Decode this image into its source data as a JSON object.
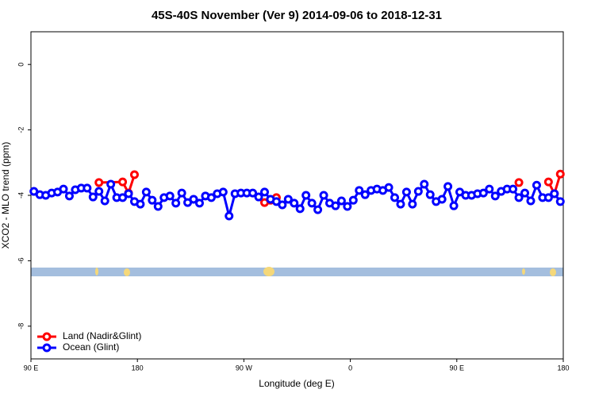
{
  "chart_data": {
    "type": "line",
    "title": "45S-40S November (Ver 9)   2014-09-06 to 2018-12-31",
    "x_label": "Longitude (deg E)",
    "y_label": "XCO2 - MLO trend (ppm)",
    "xlim": [
      90,
      540
    ],
    "xticks": [
      {
        "value": 90,
        "label": "90 E"
      },
      {
        "value": 180,
        "label": "180"
      },
      {
        "value": 270,
        "label": "90 W"
      },
      {
        "value": 360,
        "label": "0"
      },
      {
        "value": 450,
        "label": "90 E"
      },
      {
        "value": 540,
        "label": "180"
      }
    ],
    "ylim": [
      -9,
      1
    ],
    "yticks": [
      0,
      -2,
      -4,
      -6,
      -8
    ],
    "legend": "bottomleft",
    "series": [
      {
        "name": "Land (Nadir&Glint)",
        "color": "#ff0000",
        "x": [
          147.5,
          167.5,
          172.5,
          177.5,
          null,
          287.5,
          292.5,
          297.5,
          null,
          502.5,
          null,
          527.5,
          532.5,
          537.5
        ],
        "values": [
          -3.61,
          -3.59,
          -3.93,
          -3.37,
          null,
          -4.22,
          -4.15,
          -4.07,
          null,
          -3.61,
          null,
          -3.59,
          -3.95,
          -3.35
        ]
      },
      {
        "name": "Ocean (Glint)",
        "color": "#0000ff",
        "x": [
          92.5,
          97.5,
          102.5,
          107.5,
          112.5,
          117.5,
          122.5,
          127.5,
          132.5,
          137.5,
          142.5,
          147.5,
          152.5,
          157.5,
          162.5,
          167.5,
          172.5,
          177.5,
          182.5,
          187.5,
          192.5,
          197.5,
          202.5,
          207.5,
          212.5,
          217.5,
          222.5,
          227.5,
          232.5,
          237.5,
          242.5,
          247.5,
          252.5,
          257.5,
          262.5,
          267.5,
          272.5,
          277.5,
          282.5,
          287.5,
          292.5,
          297.5,
          302.5,
          307.5,
          312.5,
          317.5,
          322.5,
          327.5,
          332.5,
          337.5,
          342.5,
          347.5,
          352.5,
          357.5,
          362.5,
          367.5,
          372.5,
          377.5,
          382.5,
          387.5,
          392.5,
          397.5,
          402.5,
          407.5,
          412.5,
          417.5,
          422.5,
          427.5,
          432.5,
          437.5,
          442.5,
          447.5,
          452.5,
          457.5,
          462.5,
          467.5,
          472.5,
          477.5,
          482.5,
          487.5,
          492.5,
          497.5,
          502.5,
          507.5,
          512.5,
          517.5,
          522.5,
          527.5,
          532.5,
          537.5
        ],
        "values": [
          -3.88,
          -3.98,
          -4.0,
          -3.93,
          -3.9,
          -3.81,
          -4.02,
          -3.83,
          -3.78,
          -3.78,
          -4.05,
          -3.88,
          -4.17,
          -3.66,
          -4.07,
          -4.07,
          -3.95,
          -4.19,
          -4.27,
          -3.9,
          -4.15,
          -4.34,
          -4.07,
          -4.02,
          -4.24,
          -3.93,
          -4.22,
          -4.12,
          -4.24,
          -4.02,
          -4.07,
          -3.95,
          -3.9,
          -4.63,
          -3.95,
          -3.93,
          -3.93,
          -3.93,
          -4.05,
          -3.9,
          -4.12,
          -4.19,
          -4.29,
          -4.12,
          -4.24,
          -4.41,
          -4.0,
          -4.24,
          -4.44,
          -4.0,
          -4.24,
          -4.32,
          -4.17,
          -4.34,
          -4.15,
          -3.85,
          -3.98,
          -3.85,
          -3.81,
          -3.85,
          -3.76,
          -4.07,
          -4.27,
          -3.9,
          -4.27,
          -3.88,
          -3.66,
          -3.98,
          -4.19,
          -4.12,
          -3.73,
          -4.32,
          -3.9,
          -4.0,
          -4.0,
          -3.95,
          -3.93,
          -3.81,
          -4.02,
          -3.88,
          -3.81,
          -3.81,
          -4.07,
          -3.93,
          -4.17,
          -3.69,
          -4.07,
          -4.07,
          -3.95,
          -4.19
        ]
      }
    ]
  }
}
